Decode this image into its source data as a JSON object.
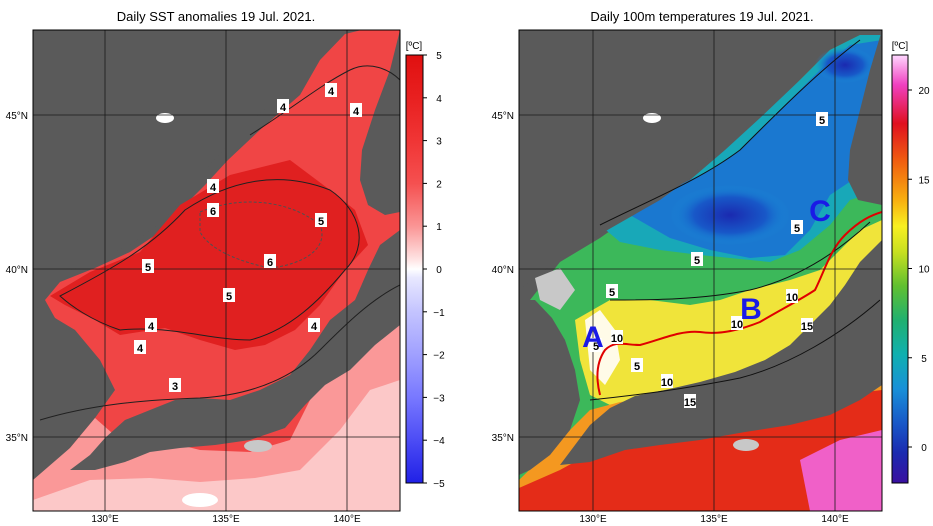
{
  "left_map": {
    "title": "Daily SST anomalies 19 Jul. 2021.",
    "colorbar": {
      "unit": "[ºC]",
      "ticks": [
        "5",
        "4",
        "3",
        "2",
        "1",
        "0",
        "−1",
        "−2",
        "−3",
        "−4",
        "−5"
      ],
      "colors": [
        "#e01010",
        "#e82020",
        "#f03535",
        "#f55050",
        "#f87070",
        "#fa9595",
        "#fcc0c0",
        "#ffffff",
        "#e2e2ff",
        "#c4c4ff",
        "#a0a0ff",
        "#7878ff",
        "#4c4cf5",
        "#2020e6"
      ]
    },
    "lat_labels": [
      "45°N",
      "40°N",
      "35°N"
    ],
    "lon_labels": [
      "130°E",
      "135°E",
      "140°E"
    ],
    "contour_labels": [
      "4",
      "4",
      "4",
      "4",
      "6",
      "5",
      "5",
      "6",
      "5",
      "4",
      "4",
      "4",
      "3"
    ]
  },
  "right_map": {
    "title": "Daily 100m temperatures 19 Jul. 2021.",
    "colorbar": {
      "unit": "[ºC]",
      "ticks": [
        "20",
        "15",
        "10",
        "5",
        "0"
      ],
      "colors": [
        "#ffd8ff",
        "#f040c0",
        "#e01020",
        "#f06010",
        "#f8b010",
        "#f8f020",
        "#c8e020",
        "#60c030",
        "#20b070",
        "#10b0b0",
        "#1890d8",
        "#1858c8",
        "#1a2ab0",
        "#3a10a0"
      ]
    },
    "lat_labels": [
      "45°N",
      "40°N",
      "35°N"
    ],
    "lon_labels": [
      "130°E",
      "135°E",
      "140°E"
    ],
    "contour_labels": [
      "5",
      "5",
      "5",
      "5",
      "10",
      "10",
      "10",
      "15",
      "5",
      "5",
      "10",
      "15"
    ],
    "markers": [
      "A",
      "B",
      "C"
    ]
  }
}
